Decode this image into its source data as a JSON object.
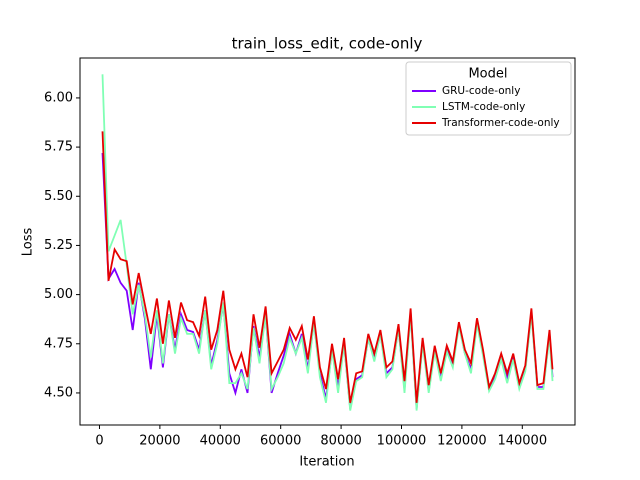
{
  "chart_data": {
    "type": "line",
    "title": "train_loss_edit, code-only",
    "xlabel": "Iteration",
    "ylabel": "Loss",
    "legend_title": "Model",
    "legend": "upper right",
    "x": [
      1000,
      3000,
      5000,
      7000,
      9000,
      11000,
      13000,
      15000,
      17000,
      19000,
      21000,
      23000,
      25000,
      27000,
      29000,
      31000,
      33000,
      35000,
      37000,
      39000,
      41000,
      43000,
      45000,
      47000,
      49000,
      51000,
      53000,
      55000,
      57000,
      59000,
      61000,
      63000,
      65000,
      67000,
      69000,
      71000,
      73000,
      75000,
      77000,
      79000,
      81000,
      83000,
      85000,
      87000,
      89000,
      91000,
      93000,
      95000,
      97000,
      99000,
      101000,
      103000,
      105000,
      107000,
      109000,
      111000,
      113000,
      115000,
      117000,
      119000,
      121000,
      123000,
      125000,
      127000,
      129000,
      131000,
      133000,
      135000,
      137000,
      139000,
      141000,
      143000,
      145000,
      147000,
      149000,
      150000
    ],
    "series": [
      {
        "name": "GRU-code-only",
        "color": "#7f00ff",
        "values": [
          5.72,
          5.08,
          5.13,
          5.06,
          5.02,
          4.82,
          5.06,
          4.88,
          4.62,
          4.9,
          4.63,
          4.9,
          4.72,
          4.9,
          4.82,
          4.81,
          4.72,
          4.92,
          4.64,
          4.77,
          4.95,
          4.6,
          4.5,
          4.62,
          4.5,
          4.84,
          4.68,
          4.9,
          4.5,
          4.6,
          4.69,
          4.8,
          4.7,
          4.8,
          4.62,
          4.86,
          4.6,
          4.47,
          4.72,
          4.53,
          4.75,
          4.42,
          4.57,
          4.59,
          4.78,
          4.67,
          4.8,
          4.6,
          4.63,
          4.83,
          4.52,
          4.91,
          4.42,
          4.76,
          4.51,
          4.72,
          4.58,
          4.72,
          4.64,
          4.85,
          4.7,
          4.62,
          4.86,
          4.7,
          4.52,
          4.58,
          4.68,
          4.57,
          4.68,
          4.53,
          4.62,
          4.91,
          4.53,
          4.53,
          4.8,
          4.58
        ]
      },
      {
        "name": "LSTM-code-only",
        "color": "#80ffb4",
        "values": [
          6.12,
          5.22,
          5.3,
          5.38,
          5.15,
          4.9,
          5.05,
          4.9,
          4.68,
          4.92,
          4.65,
          4.9,
          4.7,
          4.88,
          4.8,
          4.8,
          4.7,
          4.92,
          4.62,
          4.75,
          4.96,
          4.55,
          4.55,
          4.6,
          4.52,
          4.83,
          4.65,
          4.9,
          4.52,
          4.58,
          4.65,
          4.78,
          4.7,
          4.78,
          4.6,
          4.86,
          4.58,
          4.45,
          4.72,
          4.5,
          4.75,
          4.41,
          4.56,
          4.58,
          4.78,
          4.66,
          4.8,
          4.58,
          4.62,
          4.83,
          4.5,
          4.9,
          4.41,
          4.75,
          4.5,
          4.71,
          4.56,
          4.71,
          4.63,
          4.84,
          4.7,
          4.6,
          4.85,
          4.69,
          4.51,
          4.57,
          4.67,
          4.55,
          4.67,
          4.52,
          4.61,
          4.9,
          4.52,
          4.52,
          4.79,
          4.56
        ]
      },
      {
        "name": "Transformer-code-only",
        "color": "#e60000",
        "values": [
          5.83,
          5.07,
          5.23,
          5.18,
          5.17,
          4.95,
          5.11,
          4.95,
          4.8,
          4.98,
          4.75,
          4.97,
          4.78,
          4.96,
          4.87,
          4.86,
          4.79,
          4.99,
          4.72,
          4.82,
          5.02,
          4.72,
          4.62,
          4.7,
          4.58,
          4.9,
          4.73,
          4.94,
          4.6,
          4.66,
          4.72,
          4.83,
          4.77,
          4.84,
          4.67,
          4.89,
          4.63,
          4.52,
          4.75,
          4.57,
          4.78,
          4.45,
          4.6,
          4.61,
          4.8,
          4.7,
          4.82,
          4.63,
          4.66,
          4.85,
          4.56,
          4.93,
          4.45,
          4.78,
          4.54,
          4.74,
          4.6,
          4.74,
          4.66,
          4.86,
          4.72,
          4.65,
          4.88,
          4.72,
          4.53,
          4.6,
          4.7,
          4.6,
          4.7,
          4.55,
          4.64,
          4.93,
          4.54,
          4.55,
          4.82,
          4.62
        ]
      }
    ],
    "xlim": [
      -6450,
      157450
    ],
    "ylim": [
      4.337,
      6.203
    ],
    "xticks": [
      0,
      20000,
      40000,
      60000,
      80000,
      100000,
      120000,
      140000
    ],
    "yticks": [
      {
        "value": 4.5,
        "label": "4.50"
      },
      {
        "value": 4.75,
        "label": "4.75"
      },
      {
        "value": 5.0,
        "label": "5.00"
      },
      {
        "value": 5.25,
        "label": "5.25"
      },
      {
        "value": 5.5,
        "label": "5.50"
      },
      {
        "value": 5.75,
        "label": "5.75"
      },
      {
        "value": 6.0,
        "label": "6.00"
      }
    ]
  }
}
